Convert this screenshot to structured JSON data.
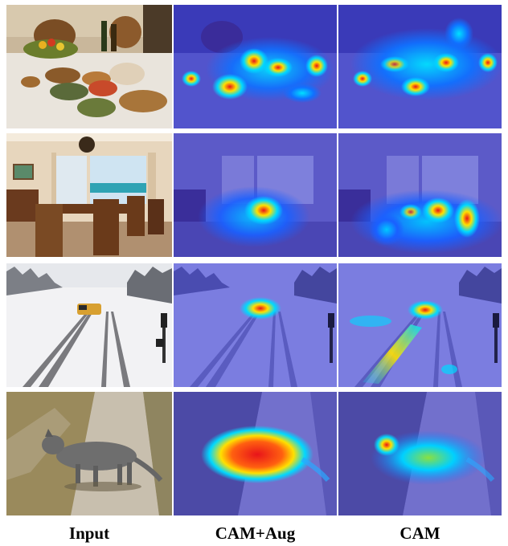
{
  "columns": [
    {
      "label": "Input"
    },
    {
      "label": "CAM+Aug"
    },
    {
      "label": "CAM"
    }
  ],
  "rows": [
    {
      "scene": "dining-table-food"
    },
    {
      "scene": "dining-room"
    },
    {
      "scene": "snow-railway-train"
    },
    {
      "scene": "cat-on-path"
    }
  ],
  "colors": {
    "heat_hot": "#e8141a",
    "heat_warm": "#ffe000",
    "heat_cool": "#00d8ff",
    "overlay_blue": "#2a2cc8"
  }
}
